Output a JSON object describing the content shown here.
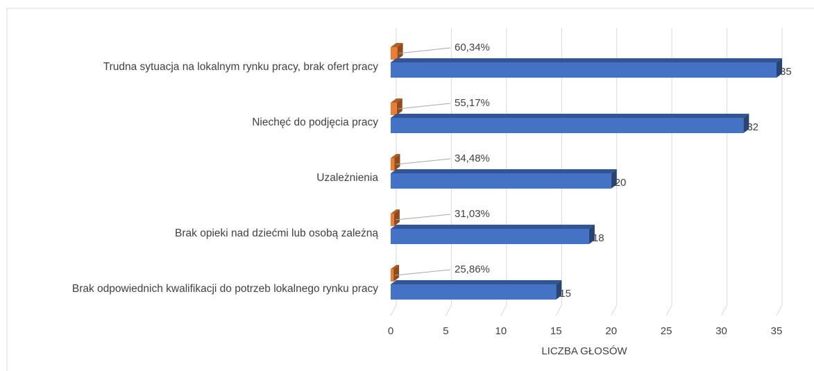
{
  "chart_data": {
    "type": "bar3d_horizontal",
    "categories": [
      "Trudna sytuacja na lokalnym rynku pracy, brak ofert pracy",
      "Niechęć do podjęcia pracy",
      "Uzależnienia",
      "Brak opieki nad dziećmi lub osobą zależną",
      "Brak odpowiednich kwalifikacji do potrzeb lokalnego rynku pracy"
    ],
    "series": [
      {
        "color": "#4472c4",
        "values": [
          35,
          32,
          20,
          18,
          15
        ]
      },
      {
        "color": "#ed7d31",
        "values": [
          0.6034,
          0.5517,
          0.3448,
          0.3103,
          0.2586
        ],
        "value_labels": [
          "60,34%",
          "55,17%",
          "34,48%",
          "31,03%",
          "25,86%"
        ]
      }
    ],
    "xlabel": "LICZBA GŁOSÓW",
    "xlim": [
      0,
      35
    ],
    "xticks": [
      0,
      5,
      10,
      15,
      20,
      25,
      30,
      35
    ],
    "grid": true
  }
}
